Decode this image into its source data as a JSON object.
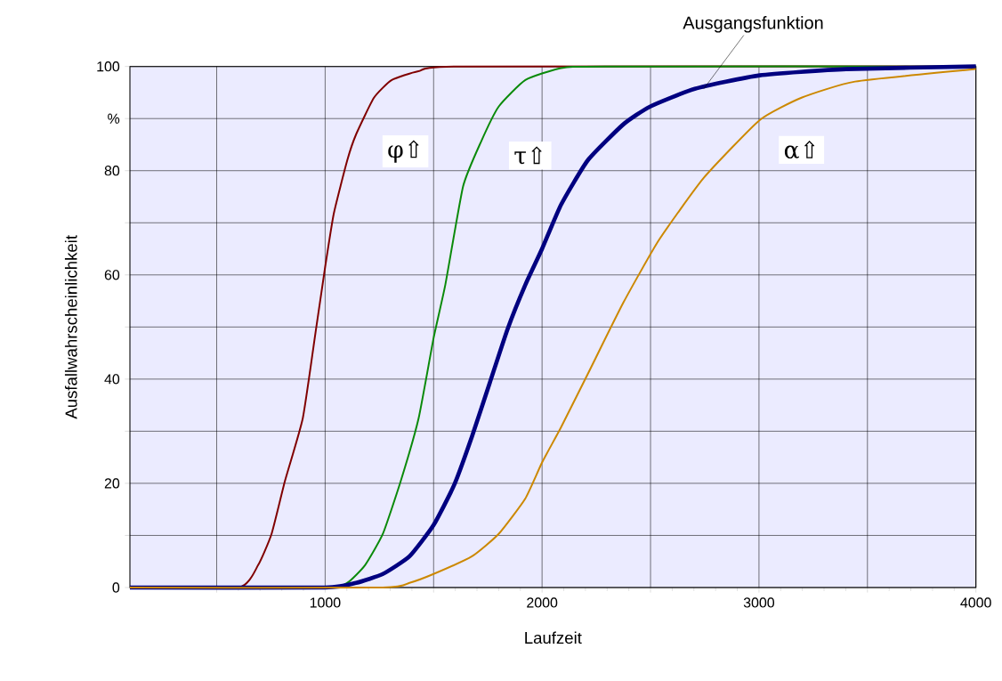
{
  "chart_data": {
    "type": "line",
    "xlabel": "Laufzeit",
    "ylabel": "Ausfallwahrscheinlichkeit",
    "xlim": [
      100,
      4000
    ],
    "ylim": [
      0,
      100
    ],
    "xticks": [
      {
        "value": 500,
        "label": null
      },
      1000,
      {
        "value": 1500,
        "label": null
      },
      2000,
      {
        "value": 2500,
        "label": null
      },
      3000,
      {
        "value": 3500,
        "label": null
      },
      4000
    ],
    "yticks": [
      0,
      {
        "value": 10,
        "label": null
      },
      20,
      {
        "value": 30,
        "label": null
      },
      40,
      {
        "value": 50,
        "label": null
      },
      60,
      {
        "value": 70,
        "label": null
      },
      80,
      {
        "value": 90,
        "label": "%"
      },
      100
    ],
    "grid": true,
    "marker": "none",
    "line_style": "solid",
    "series": [
      {
        "color": "#800000",
        "x": [
          100,
          601,
          691,
          753,
          815,
          897,
          958,
          1000,
          1040,
          1102,
          1143,
          1225,
          1307,
          1430,
          1636,
          4000
        ],
        "values": [
          0,
          0,
          4.3,
          10.3,
          20.5,
          32.5,
          49.6,
          61.5,
          71.8,
          82,
          87,
          94,
          97.4,
          99.1,
          100,
          100
        ]
      },
      {
        "color": "#0a8a0a",
        "x": [
          100,
          1000,
          1102,
          1184,
          1266,
          1349,
          1431,
          1500,
          1554,
          1636,
          1718,
          1800,
          1923,
          2088,
          2293,
          4000
        ],
        "values": [
          0,
          0,
          0.9,
          4.3,
          10.3,
          20.5,
          32.5,
          47.9,
          58.1,
          77,
          85.5,
          92.3,
          97.4,
          99.7,
          100,
          100
        ]
      },
      {
        "color": "#000080",
        "x": [
          100,
          1000,
          1143,
          1266,
          1389,
          1500,
          1595,
          1677,
          1759,
          1841,
          1923,
          2000,
          2088,
          2211,
          2375,
          2498,
          2704,
          3003,
          3402,
          4000
        ],
        "values": [
          0,
          0,
          0.9,
          2.6,
          6,
          12,
          19.7,
          29,
          39.3,
          49.6,
          58.1,
          65,
          73.5,
          82,
          88.9,
          92.3,
          95.7,
          98.3,
          99.5,
          100
        ]
      },
      {
        "color": "#cc8800",
        "x": [
          100,
          1266,
          1389,
          1500,
          1677,
          1800,
          1923,
          2000,
          2088,
          2211,
          2375,
          2539,
          2745,
          3003,
          3196,
          3443,
          4000
        ],
        "values": [
          0,
          0,
          0.9,
          2.6,
          6,
          10.3,
          17.1,
          24,
          30.8,
          41,
          54.7,
          66.7,
          78.6,
          89.7,
          94,
          97.1,
          99.5
        ]
      }
    ],
    "annotations": [
      "φ⇧",
      "τ⇧",
      "α⇧",
      {
        "text": "Ausgangsfunktion",
        "x": 2745,
        "y": 95.7
      }
    ]
  }
}
